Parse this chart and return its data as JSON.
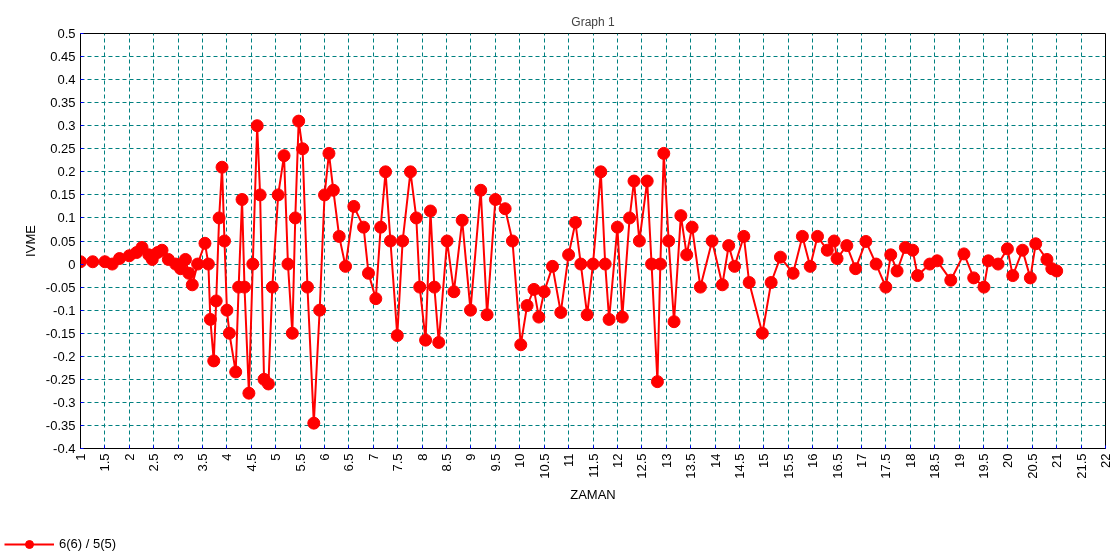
{
  "chart_data": {
    "type": "line",
    "title": "Graph 1",
    "xlabel": "ZAMAN",
    "ylabel": "IVME",
    "x": [
      1.0,
      1.25,
      1.5,
      1.65,
      1.8,
      2.0,
      2.15,
      2.26,
      2.4,
      2.47,
      2.58,
      2.67,
      2.8,
      2.95,
      3.05,
      3.15,
      3.22,
      3.29,
      3.4,
      3.55,
      3.62,
      3.66,
      3.73,
      3.78,
      3.84,
      3.9,
      3.95,
      4.0,
      4.05,
      4.18,
      4.24,
      4.31,
      4.36,
      4.45,
      4.53,
      4.62,
      4.68,
      4.76,
      4.85,
      4.93,
      5.05,
      5.17,
      5.25,
      5.34,
      5.4,
      5.47,
      5.55,
      5.65,
      5.78,
      5.9,
      6.0,
      6.09,
      6.18,
      6.3,
      6.43,
      6.6,
      6.8,
      6.9,
      7.05,
      7.15,
      7.25,
      7.35,
      7.49,
      7.6,
      7.76,
      7.88,
      7.95,
      8.07,
      8.17,
      8.25,
      8.34,
      8.51,
      8.65,
      8.82,
      8.99,
      9.2,
      9.33,
      9.5,
      9.7,
      9.85,
      10.02,
      10.15,
      10.29,
      10.39,
      10.5,
      10.67,
      10.84,
      11.0,
      11.14,
      11.25,
      11.38,
      11.5,
      11.66,
      11.75,
      11.83,
      12.0,
      12.1,
      12.25,
      12.34,
      12.45,
      12.61,
      12.7,
      12.82,
      12.88,
      12.95,
      13.05,
      13.16,
      13.3,
      13.42,
      13.53,
      13.7,
      13.94,
      14.15,
      14.28,
      14.4,
      14.59,
      14.7,
      14.97,
      15.15,
      15.34,
      15.6,
      15.79,
      15.95,
      16.1,
      16.3,
      16.44,
      16.5,
      16.7,
      16.88,
      17.09,
      17.3,
      17.5,
      17.6,
      17.73,
      17.9,
      18.05,
      18.15,
      18.4,
      18.55,
      18.83,
      19.1,
      19.3,
      19.51,
      19.6,
      19.8,
      19.99,
      20.1,
      20.3,
      20.46,
      20.57,
      20.8,
      20.9,
      21.0
    ],
    "series": [
      {
        "name": "6(6) / 5(5)",
        "color": "#ff0000",
        "values": [
          0.005,
          0.005,
          0.005,
          0.0,
          0.012,
          0.018,
          0.025,
          0.036,
          0.02,
          0.01,
          0.025,
          0.03,
          0.01,
          0.0,
          -0.01,
          0.01,
          -0.02,
          -0.045,
          0.0,
          0.045,
          0.0,
          -0.12,
          -0.21,
          -0.08,
          0.1,
          0.21,
          0.05,
          -0.1,
          -0.15,
          -0.234,
          -0.05,
          0.14,
          -0.05,
          -0.28,
          0.0,
          0.3,
          0.15,
          -0.25,
          -0.26,
          -0.05,
          0.15,
          0.235,
          0.0,
          -0.15,
          0.1,
          0.31,
          0.25,
          -0.05,
          -0.345,
          -0.1,
          0.15,
          0.24,
          0.16,
          0.06,
          -0.005,
          0.125,
          0.08,
          -0.02,
          -0.075,
          0.08,
          0.2,
          0.05,
          -0.155,
          0.05,
          0.2,
          0.1,
          -0.05,
          -0.165,
          0.115,
          -0.05,
          -0.17,
          0.05,
          -0.06,
          0.095,
          -0.1,
          0.16,
          -0.11,
          0.14,
          0.12,
          0.05,
          -0.175,
          -0.09,
          -0.055,
          -0.115,
          -0.06,
          -0.005,
          -0.105,
          0.02,
          0.09,
          0.0,
          -0.11,
          0.0,
          0.2,
          0.0,
          -0.12,
          0.08,
          -0.115,
          0.1,
          0.18,
          0.05,
          0.18,
          0.0,
          -0.255,
          0.0,
          0.24,
          0.05,
          -0.125,
          0.105,
          0.02,
          0.08,
          -0.05,
          0.05,
          -0.045,
          0.04,
          -0.005,
          0.06,
          -0.04,
          -0.15,
          -0.04,
          0.015,
          -0.02,
          0.06,
          -0.005,
          0.06,
          0.03,
          0.05,
          0.012,
          0.04,
          -0.01,
          0.049,
          0.0,
          -0.05,
          0.02,
          -0.015,
          0.036,
          0.03,
          -0.025,
          0.0,
          0.007,
          -0.035,
          0.022,
          -0.03,
          -0.05,
          0.007,
          0.0,
          0.033,
          -0.025,
          0.03,
          -0.03,
          0.044,
          0.01,
          -0.01,
          -0.015
        ]
      }
    ],
    "xlim": [
      1,
      22
    ],
    "ylim": [
      -0.4,
      0.5
    ],
    "xticks": [
      1,
      1.5,
      2,
      2.5,
      3,
      3.5,
      4,
      4.5,
      5,
      5.5,
      6,
      6.5,
      7,
      7.5,
      8,
      8.5,
      9,
      9.5,
      10,
      10.5,
      11,
      11.5,
      12,
      12.5,
      13,
      13.5,
      14,
      14.5,
      15,
      15.5,
      16,
      16.5,
      17,
      17.5,
      18,
      18.5,
      19,
      19.5,
      20,
      20.5,
      21,
      21.5,
      22
    ],
    "yticks": [
      -0.4,
      -0.35,
      -0.3,
      -0.25,
      -0.2,
      -0.15,
      -0.1,
      -0.05,
      0,
      0.05,
      0.1,
      0.15,
      0.2,
      0.25,
      0.3,
      0.35,
      0.4,
      0.45,
      0.5
    ],
    "grid": true,
    "legend": "bottom left",
    "marker": "circle",
    "line_style": "solid"
  }
}
